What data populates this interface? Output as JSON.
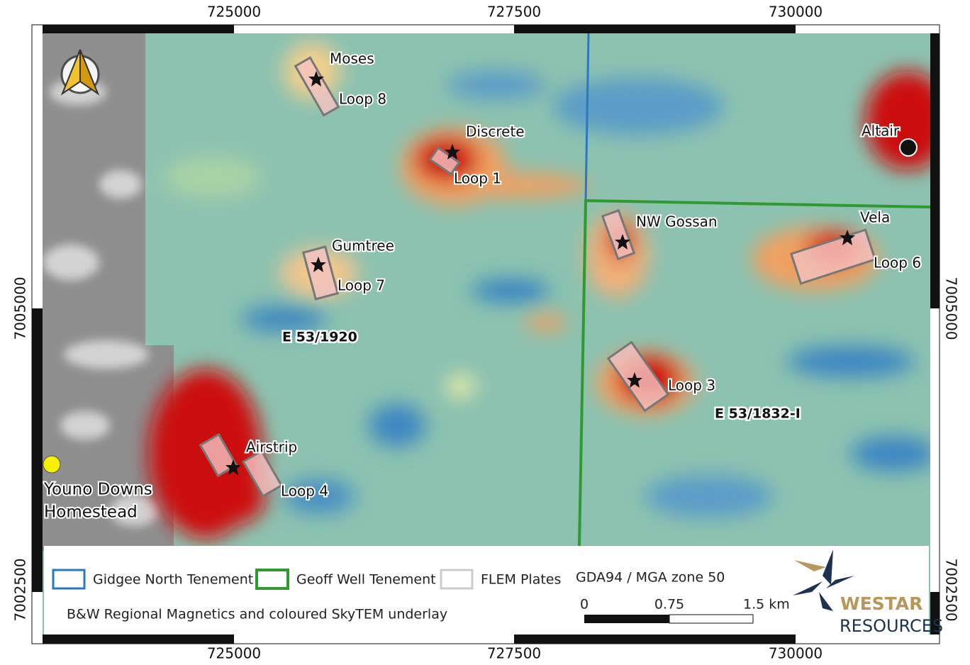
{
  "frame": {
    "top": [
      "725000",
      "727500",
      "730000"
    ],
    "bottom": [
      "725000",
      "727500",
      "730000"
    ],
    "left": [
      "7005000",
      "7002500"
    ],
    "right": [
      "7005000",
      "7002500"
    ]
  },
  "map": {
    "prospects": [
      "Moses",
      "Discrete",
      "Gumtree",
      "NW Gossan",
      "Vela",
      "Airstrip",
      "Altair"
    ],
    "loops": [
      "Loop 8",
      "Loop 1",
      "Loop 7",
      "Loop 6",
      "Loop 3",
      "Loop 4"
    ],
    "tenements": [
      "E 53/1920",
      "E 53/1832-I"
    ],
    "homestead": [
      "Youno Downs",
      "Homestead"
    ]
  },
  "legend": {
    "items": [
      "Gidgee North Tenement",
      "Geoff Well Tenement",
      "FLEM Plates"
    ],
    "caption": "B&W Regional Magnetics and coloured SkyTEM underlay",
    "crs": "GDA94 / MGA zone 50",
    "scale": [
      "0",
      "0.75",
      "1.5 km"
    ],
    "logo": [
      "WESTAR",
      "RESOURCES"
    ]
  }
}
